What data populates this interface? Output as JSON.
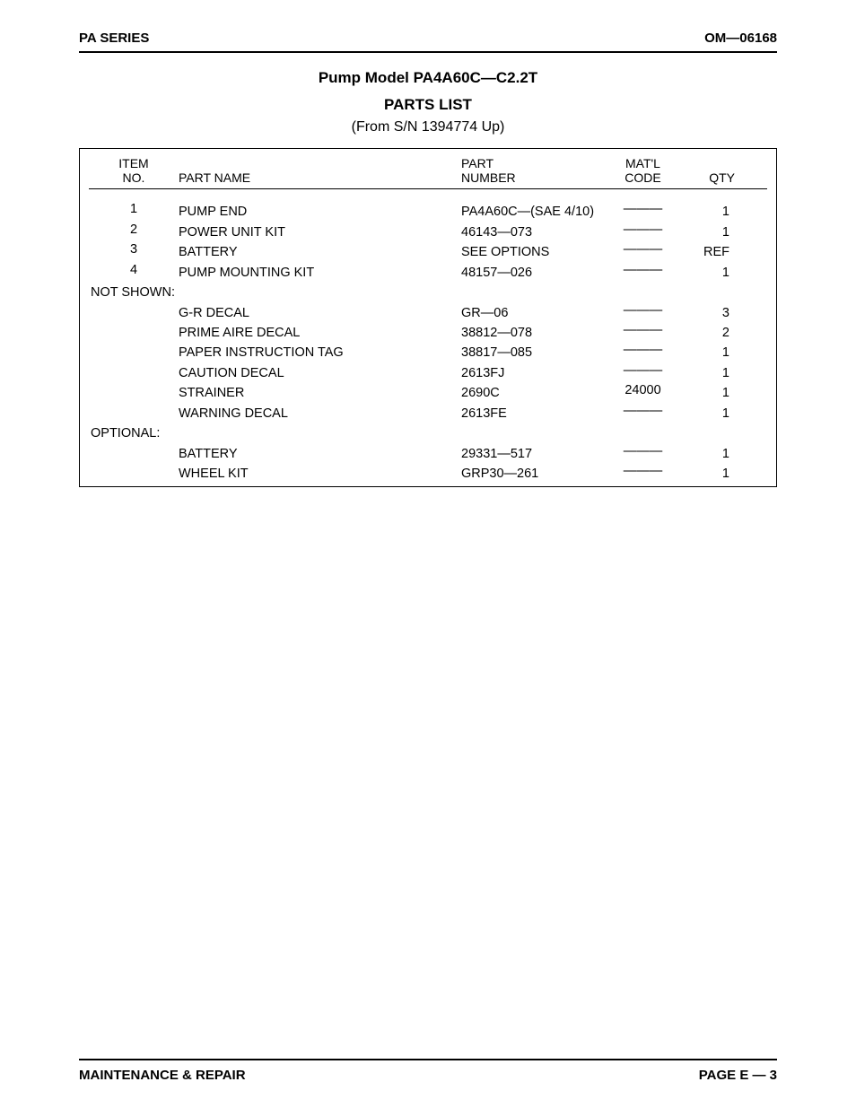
{
  "header": {
    "left": "PA SERIES",
    "right": "OM—06168"
  },
  "title": {
    "model": "Pump Model PA4A60C—C2.2T",
    "parts_list": "PARTS LIST",
    "sn": "(From S/N 1394774 Up)"
  },
  "columns": {
    "item_l1": "ITEM",
    "item_l2": "NO.",
    "name": "PART NAME",
    "part_l1": "PART",
    "part_l2": "NUMBER",
    "matl_l1": "MAT'L",
    "matl_l2": "CODE",
    "qty": "QTY"
  },
  "sections": {
    "not_shown": "NOT SHOWN:",
    "optional": "OPTIONAL:"
  },
  "rows_main": [
    {
      "item": "1",
      "name": "PUMP END",
      "part": "PA4A60C—(SAE 4/10)",
      "matl": "———",
      "qty": "1"
    },
    {
      "item": "2",
      "name": "POWER UNIT KIT",
      "part": "46143—073",
      "matl": "———",
      "qty": "1"
    },
    {
      "item": "3",
      "name": "BATTERY",
      "part": "SEE OPTIONS",
      "matl": "———",
      "qty": "REF"
    },
    {
      "item": "4",
      "name": "PUMP MOUNTING KIT",
      "part": "48157—026",
      "matl": "———",
      "qty": "1"
    }
  ],
  "rows_not_shown": [
    {
      "item": "",
      "name": "G-R DECAL",
      "part": "GR—06",
      "matl": "———",
      "qty": "3"
    },
    {
      "item": "",
      "name": "PRIME AIRE DECAL",
      "part": "38812—078",
      "matl": "———",
      "qty": "2"
    },
    {
      "item": "",
      "name": "PAPER INSTRUCTION TAG",
      "part": "38817—085",
      "matl": "———",
      "qty": "1"
    },
    {
      "item": "",
      "name": "CAUTION DECAL",
      "part": "2613FJ",
      "matl": "———",
      "qty": "1"
    },
    {
      "item": "",
      "name": "STRAINER",
      "part": "2690C",
      "matl": "24000",
      "qty": "1"
    },
    {
      "item": "",
      "name": "WARNING DECAL",
      "part": "2613FE",
      "matl": "———",
      "qty": "1"
    }
  ],
  "rows_optional": [
    {
      "item": "",
      "name": "BATTERY",
      "part": "29331—517",
      "matl": "———",
      "qty": "1"
    },
    {
      "item": "",
      "name": "WHEEL KIT",
      "part": "GRP30—261",
      "matl": "———",
      "qty": "1"
    }
  ],
  "footer": {
    "left": "MAINTENANCE & REPAIR",
    "page_label": "PAGE E — 3"
  }
}
